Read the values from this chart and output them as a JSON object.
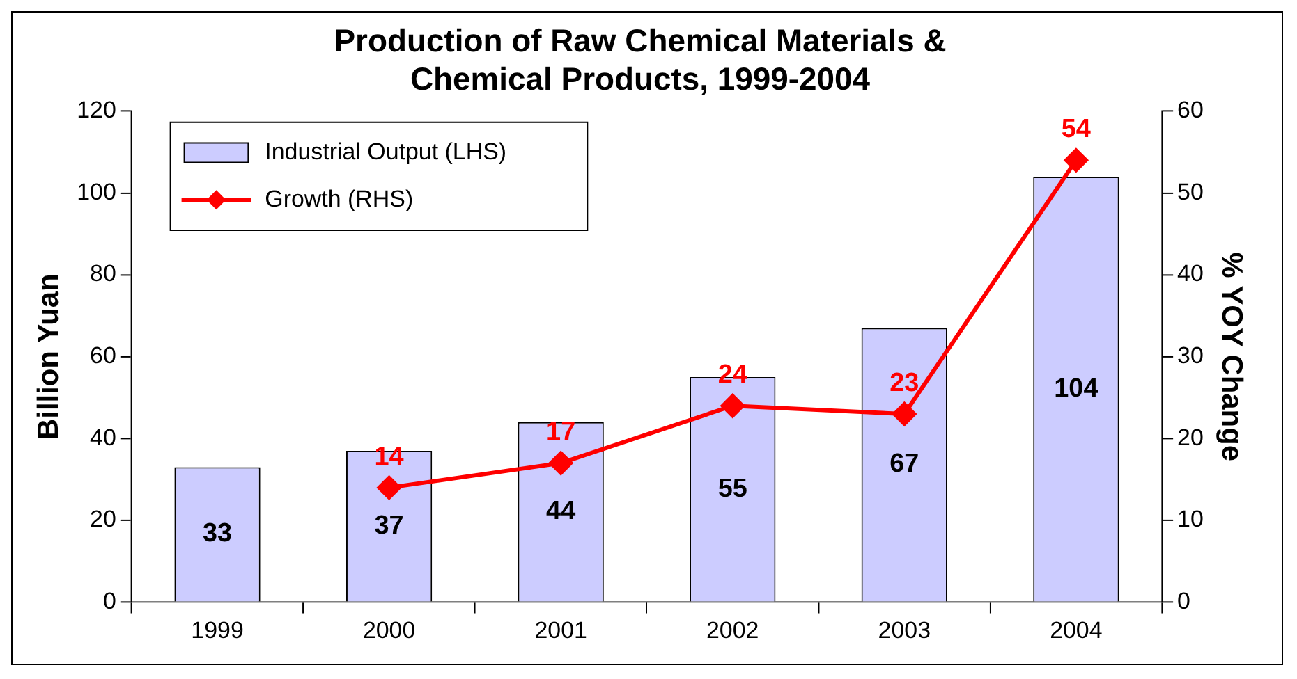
{
  "chart_data": {
    "type": "bar",
    "title": "Production of Raw Chemical Materials & Chemical Products, 1999-2004",
    "ylabel": "Billion Yuan",
    "y2label": "% YOY Change",
    "categories": [
      "1999",
      "2000",
      "2001",
      "2002",
      "2003",
      "2004"
    ],
    "series": [
      {
        "name": "Industrial Output (LHS)",
        "color": "#ccccff",
        "values": [
          33,
          37,
          44,
          55,
          67,
          104
        ]
      },
      {
        "name": "Growth (RHS)",
        "type": "line",
        "axis": "y2",
        "color": "#ff0000",
        "values": [
          null,
          14,
          17,
          24,
          23,
          54
        ]
      }
    ],
    "ylim": [
      0,
      120
    ],
    "yticks": [
      0,
      20,
      40,
      60,
      80,
      100,
      120
    ],
    "y2lim": [
      0,
      60
    ],
    "y2ticks": [
      0,
      10,
      20,
      30,
      40,
      50,
      60
    ],
    "grid": false,
    "legend": "top left",
    "marker": "diamond",
    "line_style": "solid",
    "data_labels": true
  }
}
